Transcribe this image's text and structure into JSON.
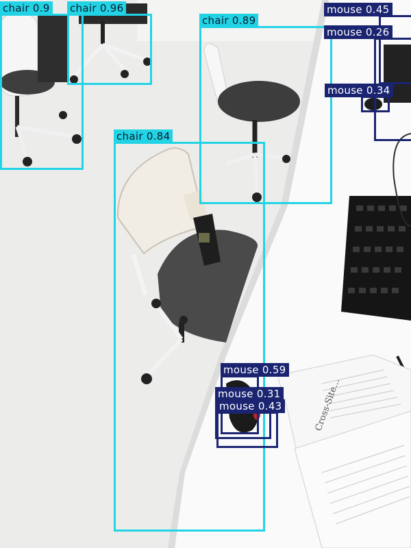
{
  "colors": {
    "chair": "#22d3e6",
    "mouse": "#1a2470",
    "floor": "#eeeeec",
    "desk": "#fafafa"
  },
  "detections": [
    {
      "id": "chair-1",
      "label": "chair",
      "score": "0.9",
      "display": "chair 0.9"
    },
    {
      "id": "chair-2",
      "label": "chair",
      "score": "0.96",
      "display": "chair 0.96"
    },
    {
      "id": "chair-3",
      "label": "chair",
      "score": "0.89",
      "display": "chair 0.89"
    },
    {
      "id": "chair-4",
      "label": "chair",
      "score": "0.84",
      "display": "chair 0.84"
    },
    {
      "id": "mouse-1",
      "label": "mouse",
      "score": "0.45",
      "display": "mouse 0.45"
    },
    {
      "id": "mouse-2",
      "label": "mouse",
      "score": "0.26",
      "display": "mouse 0.26"
    },
    {
      "id": "mouse-3",
      "label": "mouse",
      "score": "0.34",
      "display": "mouse 0.34"
    },
    {
      "id": "mouse-4",
      "label": "mouse",
      "score": "0.59",
      "display": "mouse 0.59"
    },
    {
      "id": "mouse-5",
      "label": "mouse",
      "score": "0.31",
      "display": "mouse 0.31"
    },
    {
      "id": "mouse-6",
      "label": "mouse",
      "score": "0.43",
      "display": "mouse 0.43"
    }
  ],
  "scene": {
    "book_title": "Cross-Site..."
  }
}
